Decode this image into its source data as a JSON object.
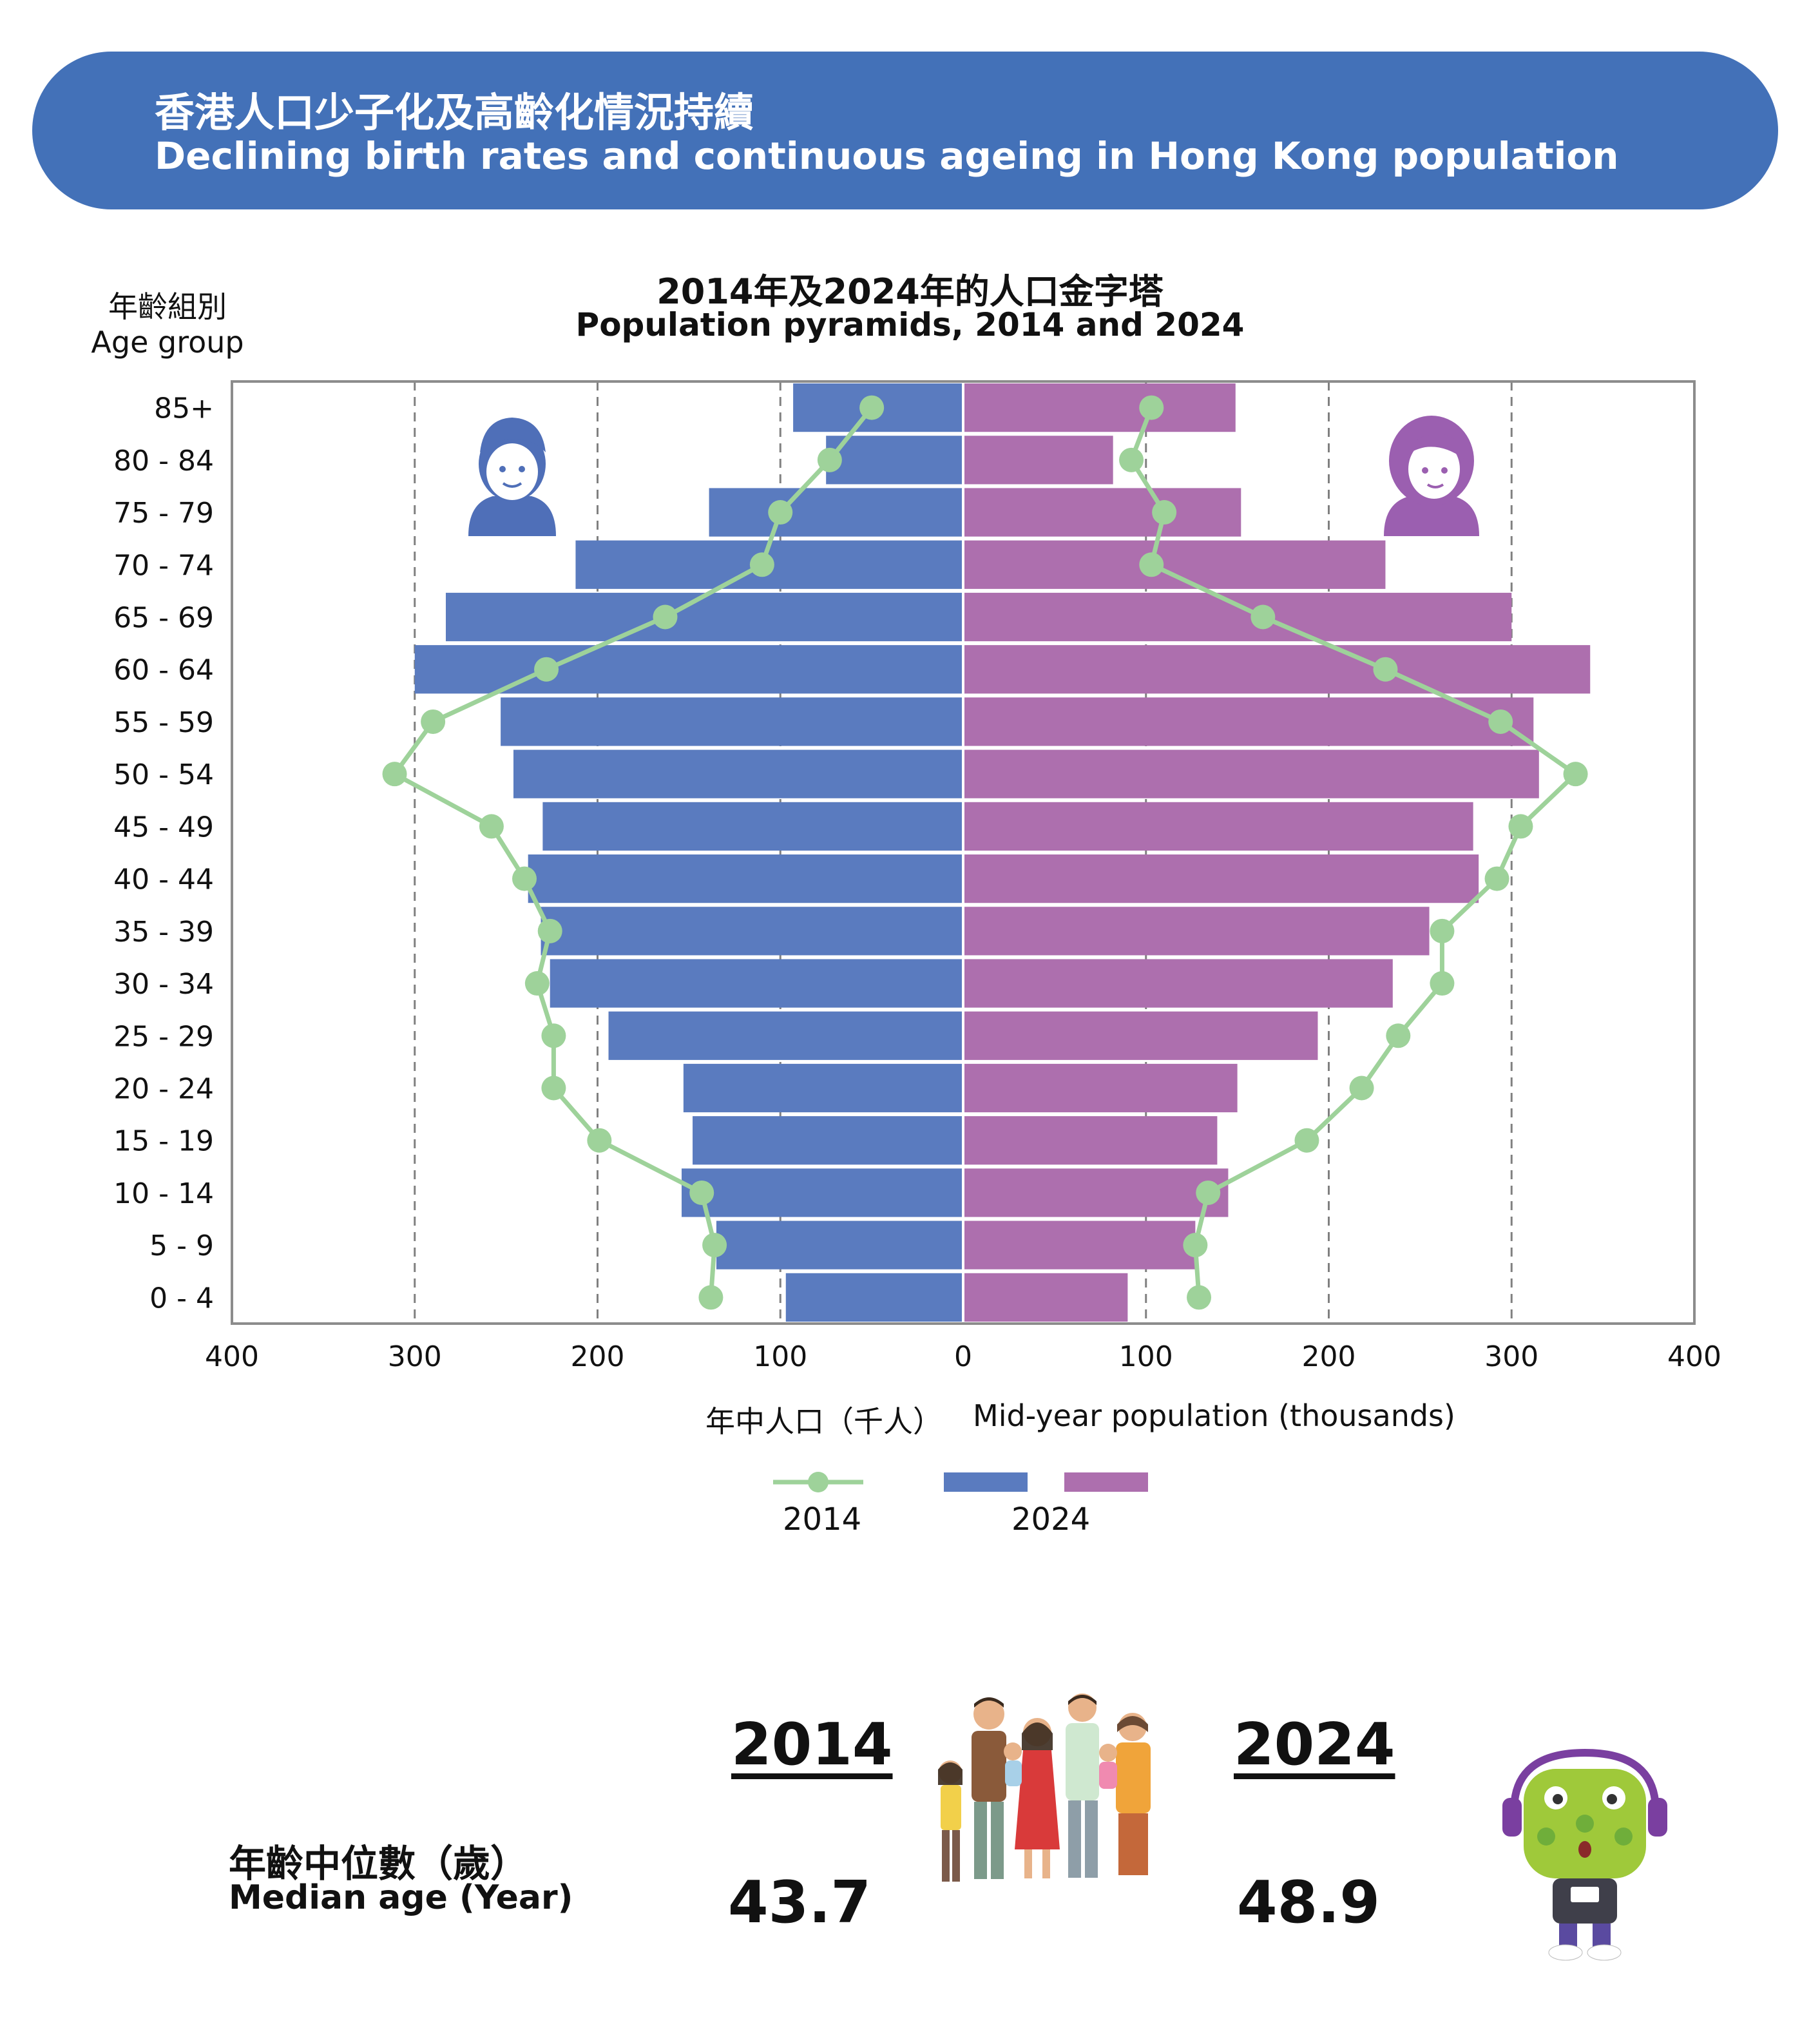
{
  "header": {
    "title_zh": "香港人口少子化及高齡化情況持續",
    "title_en": "Declining birth rates and continuous ageing in Hong Kong population"
  },
  "colors": {
    "banner": "#4371b8",
    "male_2024": "#5a7bbf",
    "female_2024": "#ad6fae",
    "line_2014": "#9ed29a",
    "grid": "#808080",
    "icon_male": "#4f6fb8",
    "icon_female": "#9b5fb0"
  },
  "icons": {
    "male": "male-person-icon",
    "female": "female-person-icon",
    "family": "family-illustration",
    "mascot": "mascot-with-headset"
  },
  "chart_data": {
    "type": "population-pyramid",
    "title_zh": "2014年及2024年的人口金字塔",
    "title_en": "Population pyramids, 2014 and 2024",
    "ylabel_zh": "年齡組別",
    "ylabel_en": "Age group",
    "xlabel_zh": "年中人口（千人）",
    "xlabel_en": "Mid-year population (thousands)",
    "xlim": [
      -400,
      400
    ],
    "xticks": [
      -400,
      -300,
      -200,
      -100,
      0,
      100,
      200,
      300,
      400
    ],
    "xtick_labels": [
      "400",
      "300",
      "200",
      "100",
      "0",
      "100",
      "200",
      "300",
      "400"
    ],
    "categories": [
      "85+",
      "80 - 84",
      "75 - 79",
      "70 - 74",
      "65 - 69",
      "60 - 64",
      "55 - 59",
      "50 - 54",
      "45 - 49",
      "40 - 44",
      "35 - 39",
      "30 - 34",
      "25 - 29",
      "20 - 24",
      "15 - 19",
      "10 - 14",
      "5 - 9",
      "0 - 4"
    ],
    "series": [
      {
        "name": "2024",
        "kind": "bar",
        "side": "male",
        "values": [
          93,
          75,
          139,
          212,
          283,
          300,
          253,
          246,
          230,
          238,
          231,
          226,
          194,
          153,
          148,
          154,
          135,
          97
        ]
      },
      {
        "name": "2024",
        "kind": "bar",
        "side": "female",
        "values": [
          149,
          82,
          152,
          231,
          300,
          343,
          312,
          315,
          279,
          282,
          255,
          235,
          194,
          150,
          139,
          145,
          127,
          90
        ]
      },
      {
        "name": "2014",
        "kind": "line",
        "side": "male",
        "values": [
          50,
          73,
          100,
          110,
          163,
          228,
          290,
          311,
          258,
          240,
          226,
          233,
          224,
          224,
          199,
          143,
          136,
          138
        ]
      },
      {
        "name": "2014",
        "kind": "line",
        "side": "female",
        "values": [
          103,
          92,
          110,
          103,
          164,
          231,
          294,
          335,
          305,
          292,
          262,
          262,
          238,
          218,
          188,
          134,
          127,
          129
        ]
      }
    ],
    "legend": [
      {
        "label": "2014",
        "type": "line"
      },
      {
        "label": "2024",
        "type": "bars"
      }
    ],
    "grid_x": "dashed",
    "legend_placement": "bottom-center"
  },
  "median_age": {
    "label_zh": "年齡中位數（歲）",
    "label_en": "Median age (Year)",
    "year1": "2014",
    "value1": "43.7",
    "year2": "2024",
    "value2": "48.9"
  }
}
